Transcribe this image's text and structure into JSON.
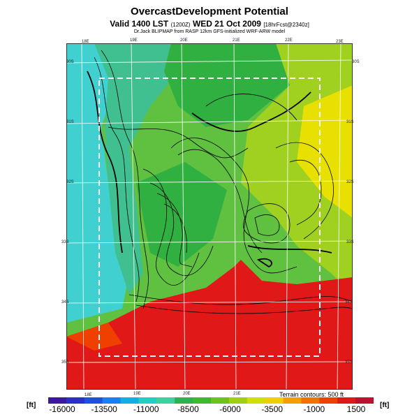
{
  "header": {
    "title": "OvercastDevelopment Potential",
    "valid_prefix": "Valid 1400 LST",
    "valid_code": "(1200Z)",
    "valid_date": "WED 21 Oct 2009",
    "valid_suffix": "[18hrFcst@2340z]",
    "credit": "Dr.Jack BLIPMAP from RASP 12km GFS-initialized WRF-ARW model"
  },
  "map": {
    "lon_labels_top": [
      "18E",
      "19E",
      "20E",
      "21E",
      "22E",
      "23E"
    ],
    "lon_labels_bottom": [
      "18E",
      "19E",
      "20E",
      "21E"
    ],
    "lat_labels_left": [
      "30S",
      "31S",
      "32S",
      "33S",
      "34S",
      "35S"
    ],
    "lat_labels_right": [
      "30S",
      "31S",
      "32S",
      "33S",
      "34S",
      "35S"
    ],
    "colors": {
      "cyan": "#40d0d0",
      "teal": "#40c090",
      "green": "#30b040",
      "light_green": "#60c040",
      "yellow_green": "#a0d020",
      "yellow": "#e8e000",
      "red": "#e01818",
      "grid": "#ffffff",
      "box": "#ffffff",
      "contour": "#000000"
    }
  },
  "legend": {
    "contour_note": "Terrain contours: 500 ft",
    "unit_left": "[ft]",
    "unit_right": "[ft]",
    "ticks": [
      "-16000",
      "-13500",
      "-11000",
      "-8500",
      "-6000",
      "-3500",
      "-1000",
      "1500"
    ],
    "colors": [
      "#3a1a9a",
      "#2a30c0",
      "#2050e0",
      "#1a80f0",
      "#10b0e0",
      "#20d0c0",
      "#40d0a0",
      "#30b050",
      "#40b830",
      "#70c020",
      "#a0d010",
      "#d0e000",
      "#f0d000",
      "#f0a000",
      "#f07000",
      "#f04000",
      "#e01818",
      "#c01030"
    ]
  }
}
